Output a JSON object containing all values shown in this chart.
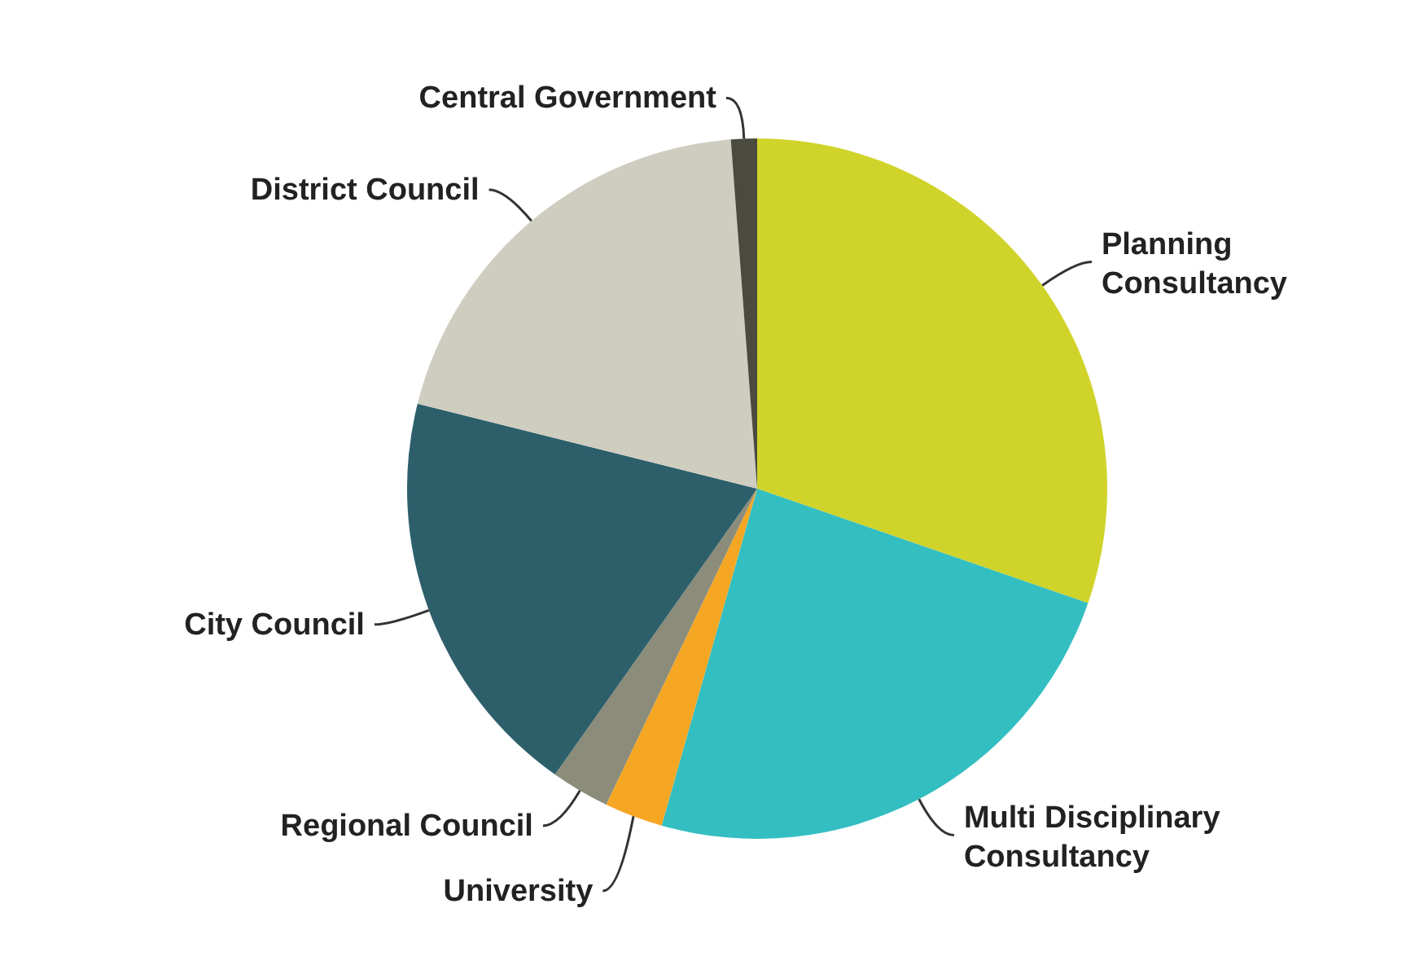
{
  "chart_data": {
    "type": "pie",
    "categories": [
      "Planning Consultancy",
      "Multi Disciplinary Consultancy",
      "University",
      "Regional Council",
      "City Council",
      "District Council",
      "Central Government"
    ],
    "values": [
      30.3,
      24.1,
      2.7,
      2.7,
      19.1,
      19.9,
      1.2
    ],
    "colors": [
      "#d0d42a",
      "#33bec1",
      "#f5a623",
      "#8b8c7a",
      "#2d5f6b",
      "#cfcdc0",
      "#4a4a3e"
    ]
  }
}
